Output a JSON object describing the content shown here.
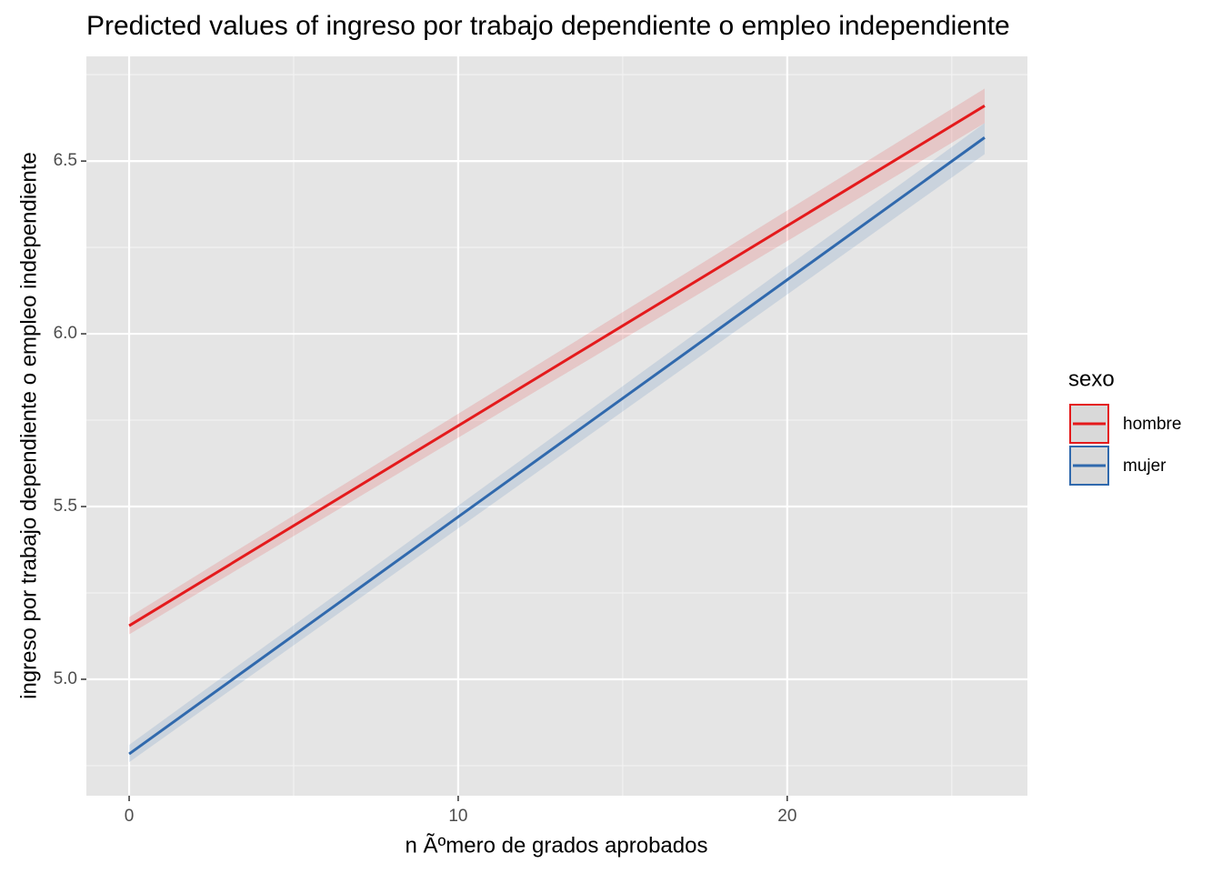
{
  "chart_data": {
    "type": "line",
    "title": "Predicted values of ingreso por trabajo dependiente o empleo independiente",
    "x_label": "n Ãºmero de grados aprobados",
    "y_label": "ingreso por trabajo dependiente o empleo independiente",
    "x": [
      0,
      26
    ],
    "series": [
      {
        "name": "hombre",
        "color": "#e41a1c",
        "values": [
          5.155,
          6.66
        ],
        "lower": [
          5.13,
          6.61
        ],
        "upper": [
          5.18,
          6.71
        ]
      },
      {
        "name": "mujer",
        "color": "#3069ad",
        "values": [
          4.784,
          6.568
        ],
        "lower": [
          4.76,
          6.52
        ],
        "upper": [
          4.81,
          6.61
        ]
      }
    ],
    "xlim": [
      -1.3,
      27.3
    ],
    "xticks": [
      0,
      10,
      20
    ],
    "ylim": [
      4.663,
      6.803
    ],
    "yticks": [
      {
        "value": 5,
        "label": "5.0"
      },
      5.5,
      {
        "value": 6,
        "label": "6.0"
      },
      6.5
    ],
    "grid": true,
    "legend_title": "sexo",
    "legend_position": "right"
  }
}
